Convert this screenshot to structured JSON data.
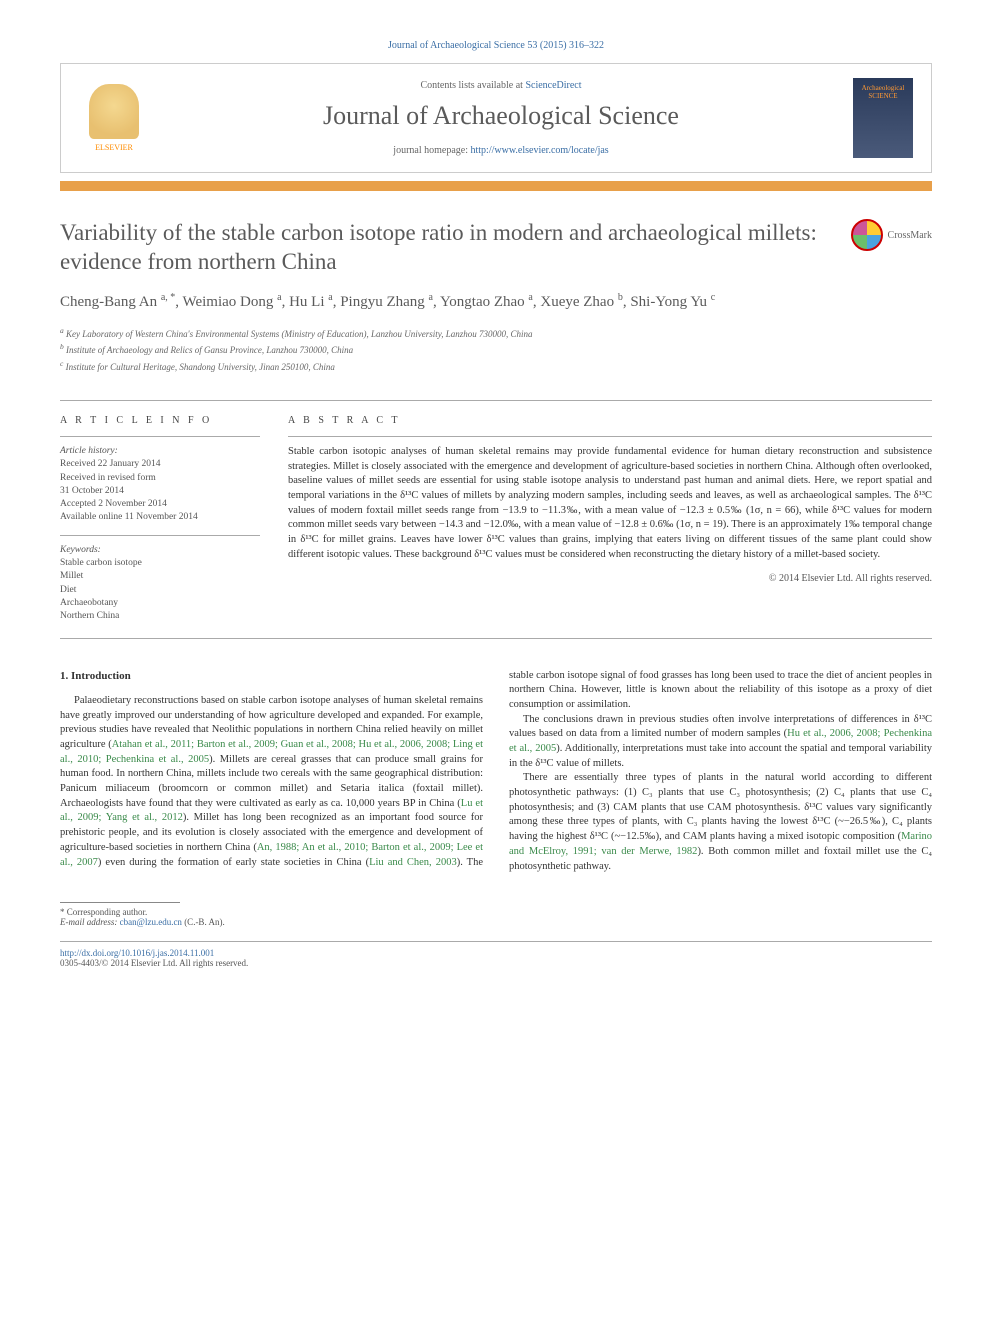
{
  "journal_ref": "Journal of Archaeological Science 53 (2015) 316–322",
  "header": {
    "publisher": "ELSEVIER",
    "contents_prefix": "Contents lists available at ",
    "contents_link": "ScienceDirect",
    "journal_title": "Journal of Archaeological Science",
    "homepage_prefix": "journal homepage: ",
    "homepage_url": "http://www.elsevier.com/locate/jas",
    "cover_text": "Archaeological SCIENCE"
  },
  "crossmark": "CrossMark",
  "title": "Variability of the stable carbon isotope ratio in modern and archaeological millets: evidence from northern China",
  "authors_html": "Cheng-Bang An <sup>a, *</sup>, Weimiao Dong <sup>a</sup>, Hu Li <sup>a</sup>, Pingyu Zhang <sup>a</sup>, Yongtao Zhao <sup>a</sup>, Xueye Zhao <sup>b</sup>, Shi-Yong Yu <sup>c</sup>",
  "affiliations": [
    "a Key Laboratory of Western China's Environmental Systems (Ministry of Education), Lanzhou University, Lanzhou 730000, China",
    "b Institute of Archaeology and Relics of Gansu Province, Lanzhou 730000, China",
    "c Institute for Cultural Heritage, Shandong University, Jinan 250100, China"
  ],
  "article_info": {
    "label": "A R T I C L E  I N F O",
    "history_label": "Article history:",
    "history": [
      "Received 22 January 2014",
      "Received in revised form",
      "31 October 2014",
      "Accepted 2 November 2014",
      "Available online 11 November 2014"
    ],
    "keywords_label": "Keywords:",
    "keywords": [
      "Stable carbon isotope",
      "Millet",
      "Diet",
      "Archaeobotany",
      "Northern China"
    ]
  },
  "abstract": {
    "label": "A B S T R A C T",
    "text": "Stable carbon isotopic analyses of human skeletal remains may provide fundamental evidence for human dietary reconstruction and subsistence strategies. Millet is closely associated with the emergence and development of agriculture-based societies in northern China. Although often overlooked, baseline values of millet seeds are essential for using stable isotope analysis to understand past human and animal diets. Here, we report spatial and temporal variations in the δ¹³C values of millets by analyzing modern samples, including seeds and leaves, as well as archaeological samples. The δ¹³C values of modern foxtail millet seeds range from −13.9 to −11.3‰, with a mean value of −12.3 ± 0.5‰ (1σ, n = 66), while δ¹³C values for modern common millet seeds vary between −14.3 and −12.0‰, with a mean value of −12.8 ± 0.6‰ (1σ, n = 19). There is an approximately 1‰ temporal change in δ¹³C for millet grains. Leaves have lower δ¹³C values than grains, implying that eaters living on different tissues of the same plant could show different isotopic values. These background δ¹³C values must be considered when reconstructing the dietary history of a millet-based society.",
    "copyright": "© 2014 Elsevier Ltd. All rights reserved."
  },
  "body": {
    "section_heading": "1. Introduction",
    "p1_a": "Palaeodietary reconstructions based on stable carbon isotope analyses of human skeletal remains have greatly improved our understanding of how agriculture developed and expanded. For example, previous studies have revealed that Neolithic populations in northern China relied heavily on millet agriculture (",
    "p1_cite1": "Atahan et al., 2011; Barton et al., 2009; Guan et al., 2008; Hu et al., 2006, 2008; Ling et al., 2010; Pechenkina et al., 2005",
    "p1_b": "). Millets are cereal grasses that can produce small grains for human food. In northern China, millets include two cereals with the same geographical distribution: Panicum miliaceum (broomcorn or common millet) and Setaria italica (foxtail millet). Archaeologists have found that they were cultivated as early as ca. 10,000 years BP in China (",
    "p1_cite2": "Lu et al., 2009; Yang et al., 2012",
    "p1_c": "). Millet has long been recognized as an important food source for prehistoric people, and its evolution is closely associated with the emergence and development of agriculture-based societies",
    "p1_d": " in northern China (",
    "p1_cite3": "An, 1988; An et al., 2010; Barton et al., 2009; Lee et al., 2007",
    "p1_e": ") even during the formation of early state societies in China (",
    "p1_cite4": "Liu and Chen, 2003",
    "p1_f": "). The stable carbon isotope signal of food grasses has long been used to trace the diet of ancient peoples in northern China. However, little is known about the reliability of this isotope as a proxy of diet consumption or assimilation.",
    "p2_a": "The conclusions drawn in previous studies often involve interpretations of differences in δ¹³C values based on data from a limited number of modern samples (",
    "p2_cite1": "Hu et al., 2006, 2008; Pechenkina et al., 2005",
    "p2_b": "). Additionally, interpretations must take into account the spatial and temporal variability in the δ¹³C value of millets.",
    "p3_a": "There are essentially three types of plants in the natural world according to different photosynthetic pathways: (1) C₃ plants that use C₃ photosynthesis; (2) C₄ plants that use C₄ photosynthesis; and (3) CAM plants that use CAM photosynthesis. δ¹³C values vary significantly among these three types of plants, with C₃ plants having the lowest δ¹³C (~−26.5‰), C₄ plants having the highest δ¹³C (~−12.5‰), and CAM plants having a mixed isotopic composition (",
    "p3_cite1": "Marino and McElroy, 1991; van der Merwe, 1982",
    "p3_b": "). Both common millet and foxtail millet use the C₄ photosynthetic pathway."
  },
  "footnotes": {
    "corr": "* Corresponding author.",
    "email_label": "E-mail address: ",
    "email": "cban@lzu.edu.cn",
    "email_suffix": " (C.-B. An)."
  },
  "footer": {
    "doi": "http://dx.doi.org/10.1016/j.jas.2014.11.001",
    "issn_line": "0305-4403/© 2014 Elsevier Ltd. All rights reserved."
  },
  "colors": {
    "link_blue": "#3a6ea5",
    "cite_green": "#3a8a4a",
    "orange_bar": "#e8a04a",
    "text_gray": "#5a5a5a"
  }
}
